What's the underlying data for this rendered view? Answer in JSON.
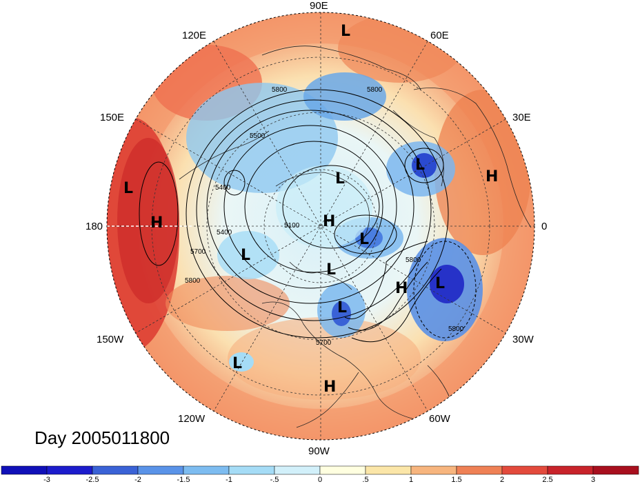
{
  "title": "Day 2005011800",
  "longitude_labels": {
    "lon_90e": "90E",
    "lon_60e": "60E",
    "lon_30e": "30E",
    "lon_0": "0",
    "lon_30w": "30W",
    "lon_60w": "60W",
    "lon_90w": "90W",
    "lon_120w": "120W",
    "lon_150w": "150W",
    "lon_180": "180",
    "lon_150e": "150E",
    "lon_120e": "120E"
  },
  "pressure_centers": [
    {
      "type": "L"
    },
    {
      "type": "L"
    },
    {
      "type": "H"
    },
    {
      "type": "L"
    },
    {
      "type": "H"
    },
    {
      "type": "L"
    },
    {
      "type": "H"
    },
    {
      "type": "L"
    },
    {
      "type": "L"
    },
    {
      "type": "L"
    },
    {
      "type": "H"
    },
    {
      "type": "L"
    },
    {
      "type": "L"
    },
    {
      "type": "L"
    },
    {
      "type": "H"
    }
  ],
  "contour_labels": [
    "5800",
    "5800",
    "5500",
    "5400",
    "5400",
    "5700",
    "5800",
    "5100",
    "5800",
    "5800",
    "5700"
  ],
  "colorbar": {
    "tick_labels": [
      "-3",
      "-2.5",
      "-2",
      "-1.5",
      "-1",
      "-.5",
      "0",
      ".5",
      "1",
      "1.5",
      "2",
      "2.5",
      "3"
    ],
    "colors": [
      "#1c1ccc",
      "#3a62d6",
      "#5a93e8",
      "#7dbcf0",
      "#a5dcf6",
      "#d2f0fa",
      "#ffffe0",
      "#fbe6a8",
      "#f7b57e",
      "#ef8155",
      "#e34a3c",
      "#c8232a",
      "#a80f1e"
    ]
  }
}
